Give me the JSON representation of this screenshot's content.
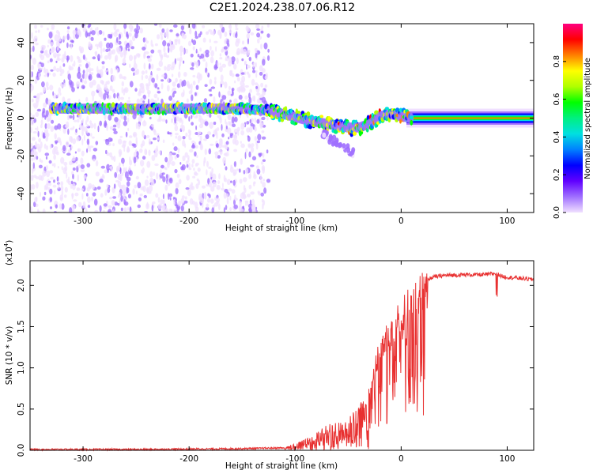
{
  "figure_title": "C2E1.2024.238.07.06.R12",
  "chart_data": [
    {
      "type": "heatmap",
      "title": "",
      "xlabel": "Height of straight line (km)",
      "ylabel": "Frequency (Hz)",
      "xlim": [
        -350,
        125
      ],
      "ylim": [
        -50,
        50
      ],
      "xticks": [
        -300,
        -200,
        -100,
        0,
        100
      ],
      "yticks": [
        -40,
        -20,
        0,
        20,
        40
      ],
      "colorbar": {
        "label": "Normalized spectral amplitude",
        "ticks": [
          0.0,
          0.2,
          0.4,
          0.6,
          0.8
        ],
        "range": [
          0,
          1
        ],
        "colors": [
          "#f0e0ff",
          "#a070ff",
          "#6000ff",
          "#0000ff",
          "#0080ff",
          "#00e0e0",
          "#00f080",
          "#00ff00",
          "#b0ff00",
          "#ffff00",
          "#ff8000",
          "#ff0000",
          "#ff0080"
        ]
      },
      "ridge": {
        "description_points_x": [
          -330,
          -300,
          -250,
          -200,
          -150,
          -125,
          -110,
          -90,
          -70,
          -50,
          -40,
          -30,
          -20,
          -10,
          0,
          10,
          50,
          100,
          125
        ],
        "frequency_y": [
          5,
          5,
          5,
          5,
          5,
          4,
          2,
          -1,
          -3,
          -5,
          -5,
          -3,
          1,
          2,
          1,
          0,
          0,
          0,
          0
        ]
      }
    },
    {
      "type": "line",
      "title": "",
      "xlabel": "Height of straight line (km)",
      "ylabel": "SNR (10 * v/v)",
      "y_multiplier_label": "(x10",
      "y_multiplier_exp": "4",
      "xlim": [
        -350,
        125
      ],
      "ylim": [
        0,
        2.3
      ],
      "xticks": [
        -300,
        -200,
        -100,
        0,
        100
      ],
      "yticks": [
        0.0,
        0.5,
        1.0,
        1.5,
        2.0
      ],
      "series": [
        {
          "name": "SNR",
          "color": "#e83030",
          "x": [
            -350,
            -250,
            -150,
            -110,
            -100,
            -90,
            -80,
            -70,
            -60,
            -50,
            -40,
            -30,
            -25,
            -20,
            -15,
            -10,
            -5,
            0,
            10,
            20,
            30,
            40,
            60,
            80,
            90,
            95,
            100,
            110,
            125
          ],
          "y": [
            0.01,
            0.01,
            0.02,
            0.03,
            0.08,
            0.15,
            0.2,
            0.3,
            0.3,
            0.35,
            0.5,
            0.8,
            1.05,
            1.3,
            1.45,
            1.55,
            1.65,
            1.75,
            1.95,
            2.05,
            2.1,
            2.12,
            2.13,
            2.13,
            2.15,
            2.11,
            2.1,
            2.09,
            2.07
          ]
        }
      ]
    }
  ]
}
